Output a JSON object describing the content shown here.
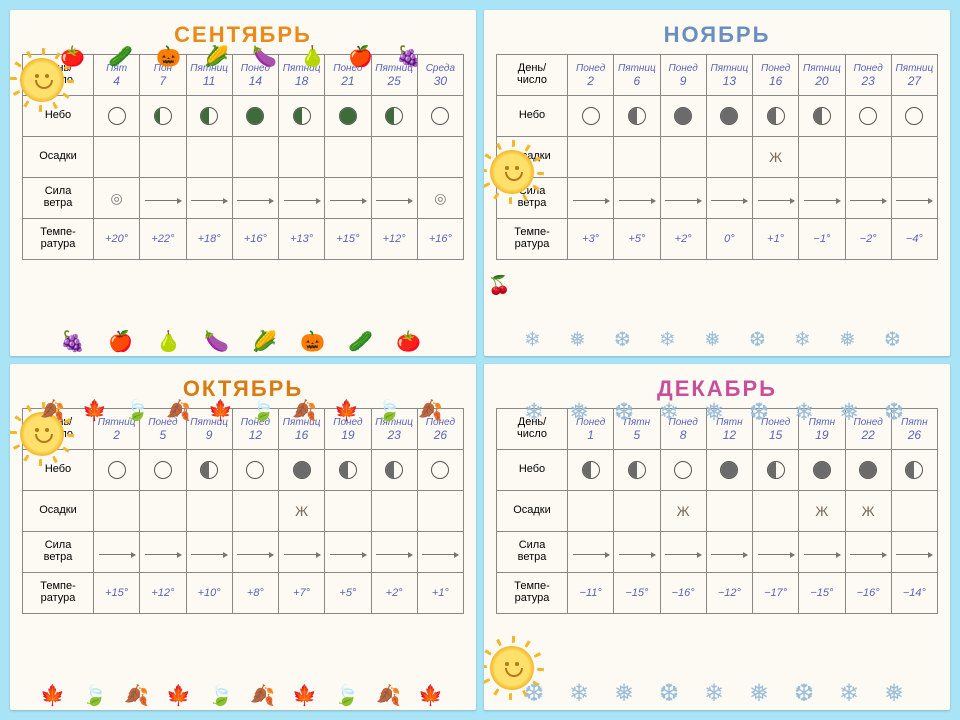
{
  "cards": [
    {
      "key": "sept",
      "title": "СЕНТЯБРЬ",
      "title_color": "#e98a1a",
      "row_labels": [
        "День/\nчисло",
        "Небо",
        "Осадки",
        "Сила\nветра",
        "Темпе-\nратура"
      ],
      "days": [
        {
          "top": "Пят",
          "num": "4"
        },
        {
          "top": "Пон",
          "num": "7"
        },
        {
          "top": "Пятниц",
          "num": "11"
        },
        {
          "top": "Понед",
          "num": "14"
        },
        {
          "top": "Пятниц",
          "num": "18"
        },
        {
          "top": "Понед",
          "num": "21"
        },
        {
          "top": "Пятниц",
          "num": "25"
        },
        {
          "top": "Среда",
          "num": "30"
        }
      ],
      "sky": [
        0,
        0.3,
        0.5,
        1,
        0.5,
        1,
        0.5,
        0
      ],
      "precip": [
        "",
        "",
        "",
        "",
        "",
        "",
        "",
        ""
      ],
      "wind": [
        "target",
        "arrow",
        "arrow",
        "arrow",
        "arrow",
        "arrow",
        "arrow",
        "target"
      ],
      "temp": [
        "+20°",
        "+22°",
        "+18°",
        "+16°",
        "+13°",
        "+15°",
        "+12°",
        "+16°"
      ]
    },
    {
      "key": "nov",
      "title": "НОЯБРЬ",
      "title_color": "#6a8fbf",
      "row_labels": [
        "День/\nчисло",
        "Небо",
        "Осадки",
        "Сила\nветра",
        "Темпе-\nратура"
      ],
      "days": [
        {
          "top": "Понед",
          "num": "2"
        },
        {
          "top": "Пятниц",
          "num": "6"
        },
        {
          "top": "Понед",
          "num": "9"
        },
        {
          "top": "Пятниц",
          "num": "13"
        },
        {
          "top": "Понед",
          "num": "16"
        },
        {
          "top": "Пятниц",
          "num": "20"
        },
        {
          "top": "Понед",
          "num": "23"
        },
        {
          "top": "Пятниц",
          "num": "27"
        }
      ],
      "sky": [
        0,
        0.5,
        1,
        1,
        0.5,
        0.5,
        0,
        0
      ],
      "precip": [
        "",
        "",
        "",
        "",
        "Ж",
        "",
        "",
        ""
      ],
      "wind": [
        "arrow",
        "arrow",
        "arrow",
        "arrow",
        "arrow",
        "arrow",
        "arrow",
        "arrow"
      ],
      "temp": [
        "+3°",
        "+5°",
        "+2°",
        "0°",
        "+1°",
        "−1°",
        "−2°",
        "−4°"
      ]
    },
    {
      "key": "oct",
      "title": "ОКТЯБРЬ",
      "title_color": "#d97b10",
      "row_labels": [
        "День/\nчисло",
        "Небо",
        "Осадки",
        "Сила\nветра",
        "Темпе-\nратура"
      ],
      "days": [
        {
          "top": "Пятниц",
          "num": "2"
        },
        {
          "top": "Понед",
          "num": "5"
        },
        {
          "top": "Пятниц",
          "num": "9"
        },
        {
          "top": "Понед",
          "num": "12"
        },
        {
          "top": "Пятниц",
          "num": "16"
        },
        {
          "top": "Понед",
          "num": "19"
        },
        {
          "top": "Пятниц",
          "num": "23"
        },
        {
          "top": "Понед",
          "num": "26"
        }
      ],
      "sky": [
        0,
        0,
        0.5,
        0,
        1,
        0.5,
        0.5,
        0
      ],
      "precip": [
        "",
        "",
        "",
        "",
        "Ж",
        "",
        "",
        ""
      ],
      "wind": [
        "arrow",
        "arrow",
        "arrow",
        "arrow",
        "arrow",
        "arrow",
        "arrow",
        "arrow"
      ],
      "temp": [
        "+15°",
        "+12°",
        "+10°",
        "+8°",
        "+7°",
        "+5°",
        "+2°",
        "+1°"
      ]
    },
    {
      "key": "dec",
      "title": "ДЕКАБРЬ",
      "title_color": "#c94f9a",
      "row_labels": [
        "День/\nчисло",
        "Небо",
        "Осадки",
        "Сила\nветра",
        "Темпе-\nратура"
      ],
      "days": [
        {
          "top": "Понед",
          "num": "1"
        },
        {
          "top": "Пятн",
          "num": "5"
        },
        {
          "top": "Понед",
          "num": "8"
        },
        {
          "top": "Пятн",
          "num": "12"
        },
        {
          "top": "Понед",
          "num": "15"
        },
        {
          "top": "Пятн",
          "num": "19"
        },
        {
          "top": "Понед",
          "num": "22"
        },
        {
          "top": "Пятн",
          "num": "26"
        }
      ],
      "sky": [
        0.5,
        0.5,
        0,
        1,
        0.5,
        1,
        1,
        0.5
      ],
      "precip": [
        "",
        "",
        "Ж",
        "",
        "",
        "Ж",
        "Ж",
        ""
      ],
      "wind": [
        "arrow",
        "arrow",
        "arrow",
        "arrow",
        "arrow",
        "arrow",
        "arrow",
        "arrow"
      ],
      "temp": [
        "−11°",
        "−15°",
        "−16°",
        "−12°",
        "−17°",
        "−15°",
        "−16°",
        "−14°"
      ]
    }
  ],
  "deco": {
    "sept_veg": [
      "🍅",
      "🥒",
      "🎃",
      "🌽",
      "🍆",
      "🍐",
      "🍎",
      "🍇"
    ],
    "flakes": [
      "❄",
      "❅",
      "❆"
    ],
    "leaves": [
      "🍂",
      "🍁",
      "🍃"
    ]
  }
}
